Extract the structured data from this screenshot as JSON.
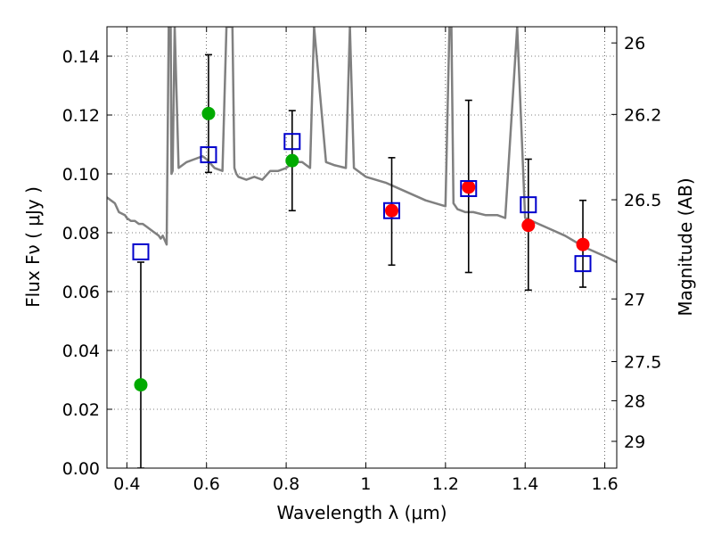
{
  "chart_data": {
    "type": "scatter",
    "title": "",
    "xlabel": "Wavelength  λ (μm)",
    "ylabel": "Flux  Fν ( μJy )",
    "ylabel_right": "Magnitude (AB)",
    "xlim": [
      0.35,
      1.63
    ],
    "ylim": [
      0.0,
      0.15
    ],
    "x_ticks": [
      0.4,
      0.6,
      0.8,
      1.0,
      1.2,
      1.4,
      1.6
    ],
    "x_tick_labels": [
      "0.4",
      "0.6",
      "0.8",
      "1",
      "1.2",
      "1.4",
      "1.6"
    ],
    "y_ticks": [
      0.0,
      0.02,
      0.04,
      0.06,
      0.08,
      0.1,
      0.12,
      0.14
    ],
    "y_tick_labels": [
      "0.00",
      "0.02",
      "0.04",
      "0.06",
      "0.08",
      "0.10",
      "0.12",
      "0.14"
    ],
    "right_ticks": [
      {
        "label": "26",
        "flux": 0.1445
      },
      {
        "label": "26.2",
        "flux": 0.1202
      },
      {
        "label": "26.5",
        "flux": 0.0912
      },
      {
        "label": "27",
        "flux": 0.0575
      },
      {
        "label": "27.5",
        "flux": 0.0362
      },
      {
        "label": "28",
        "flux": 0.0229
      },
      {
        "label": "29",
        "flux": 0.0091
      }
    ],
    "grid": true,
    "colors": {
      "model": "#808080",
      "green": "#00aa00",
      "red": "#ff0000",
      "model_box": "#0000cc",
      "errorbar": "#000000"
    },
    "series": [
      {
        "kind": "line",
        "color": "#808080",
        "x": [
          0.35,
          0.37,
          0.38,
          0.395,
          0.4,
          0.41,
          0.42,
          0.43,
          0.44,
          0.45,
          0.46,
          0.47,
          0.48,
          0.485,
          0.49,
          0.5,
          0.505,
          0.51,
          0.512,
          0.515,
          0.52,
          0.53,
          0.55,
          0.57,
          0.59,
          0.6,
          0.62,
          0.64,
          0.65,
          0.655,
          0.66,
          0.665,
          0.67,
          0.675,
          0.68,
          0.7,
          0.72,
          0.74,
          0.76,
          0.78,
          0.8,
          0.82,
          0.84,
          0.86,
          0.87,
          0.9,
          0.92,
          0.95,
          0.96,
          0.97,
          1.0,
          1.05,
          1.1,
          1.15,
          1.2,
          1.21,
          1.215,
          1.22,
          1.23,
          1.25,
          1.27,
          1.3,
          1.33,
          1.35,
          1.38,
          1.4,
          1.45,
          1.5,
          1.55,
          1.6,
          1.63
        ],
        "y": [
          0.092,
          0.09,
          0.087,
          0.086,
          0.085,
          0.084,
          0.084,
          0.083,
          0.083,
          0.082,
          0.081,
          0.08,
          0.079,
          0.078,
          0.079,
          0.076,
          0.15,
          0.15,
          0.1,
          0.101,
          0.15,
          0.102,
          0.104,
          0.105,
          0.106,
          0.105,
          0.102,
          0.101,
          0.15,
          0.15,
          0.15,
          0.15,
          0.102,
          0.1,
          0.099,
          0.098,
          0.099,
          0.098,
          0.101,
          0.101,
          0.102,
          0.104,
          0.104,
          0.102,
          0.15,
          0.104,
          0.103,
          0.102,
          0.15,
          0.102,
          0.099,
          0.097,
          0.094,
          0.091,
          0.089,
          0.15,
          0.15,
          0.09,
          0.088,
          0.087,
          0.087,
          0.086,
          0.086,
          0.085,
          0.15,
          0.085,
          0.082,
          0.079,
          0.075,
          0.072,
          0.07
        ]
      },
      {
        "kind": "points",
        "marker": "circle",
        "color": "#00aa00",
        "x": [
          0.435,
          0.605,
          0.815
        ],
        "y": [
          0.0283,
          0.1205,
          0.1045
        ]
      },
      {
        "kind": "points",
        "marker": "circle",
        "color": "#ff0000",
        "x": [
          1.065,
          1.258,
          1.408,
          1.545
        ],
        "y": [
          0.0875,
          0.0955,
          0.0825,
          0.076
        ]
      },
      {
        "kind": "points",
        "marker": "open-square",
        "color": "#0000cc",
        "x": [
          0.435,
          0.605,
          0.815,
          1.065,
          1.258,
          1.408,
          1.545
        ],
        "y": [
          0.0735,
          0.1065,
          0.111,
          0.0875,
          0.095,
          0.0895,
          0.0695
        ]
      },
      {
        "kind": "errorbars",
        "color": "#000000",
        "x": [
          0.435,
          0.605,
          0.815,
          1.065,
          1.258,
          1.408,
          1.545
        ],
        "low": [
          0.0,
          0.1005,
          0.0875,
          0.069,
          0.0665,
          0.0605,
          0.0615
        ],
        "high": [
          0.07,
          0.1405,
          0.1215,
          0.1055,
          0.125,
          0.105,
          0.091
        ]
      }
    ]
  }
}
